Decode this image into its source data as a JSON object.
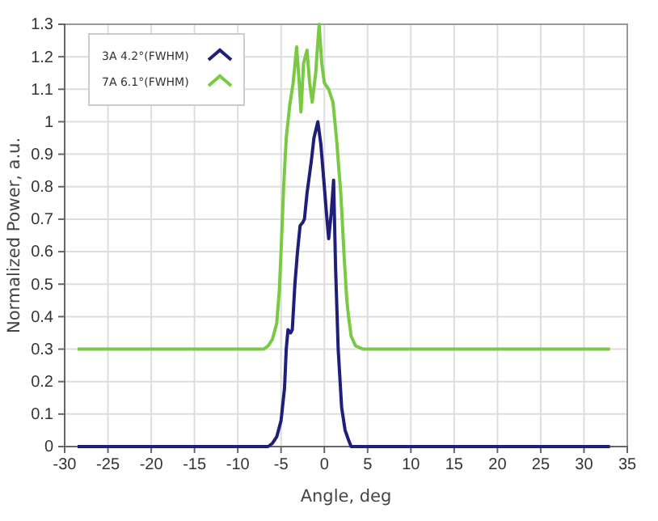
{
  "chart_data": {
    "type": "line",
    "xlabel": "Angle, deg",
    "ylabel": "Normalized Power, a.u.",
    "xlim": [
      -30,
      35
    ],
    "xticks": [
      -30,
      -25,
      -20,
      -15,
      -10,
      -5,
      0,
      5,
      10,
      15,
      20,
      25,
      30,
      35
    ],
    "ylim": [
      0,
      1.3
    ],
    "yticks": [
      0,
      0.1,
      0.2,
      0.3,
      0.4,
      0.5,
      0.6,
      0.7,
      0.8,
      0.9,
      1,
      1.1,
      1.2,
      1.3
    ],
    "grid": true,
    "legend": "top left",
    "line_style": "solid",
    "marker": "none",
    "series": [
      {
        "name": "3A 4.2°(FWHM)",
        "color": "#1f1f7a",
        "x": [
          -28.5,
          -6.5,
          -6,
          -5.5,
          -5,
          -4.6,
          -4.4,
          -4.2,
          -3.9,
          -3.7,
          -3.4,
          -3.1,
          -2.8,
          -2.5,
          -2.3,
          -2,
          -1.5,
          -1.2,
          -0.75,
          -0.4,
          0,
          0.3,
          0.5,
          0.8,
          1.07,
          1.3,
          1.6,
          2,
          2.4,
          2.8,
          3.1,
          3.5,
          33
        ],
        "values": [
          0,
          0,
          0.01,
          0.03,
          0.08,
          0.18,
          0.3,
          0.36,
          0.35,
          0.36,
          0.5,
          0.6,
          0.68,
          0.69,
          0.7,
          0.78,
          0.88,
          0.95,
          1.0,
          0.93,
          0.8,
          0.7,
          0.64,
          0.72,
          0.82,
          0.55,
          0.3,
          0.12,
          0.05,
          0.02,
          0,
          0,
          0
        ]
      },
      {
        "name": "7A 6.1°(FWHM)",
        "color": "#7ac943",
        "x": [
          -28.5,
          -7,
          -6.5,
          -6,
          -5.5,
          -5.2,
          -5,
          -4.7,
          -4.4,
          -4,
          -3.6,
          -3.2,
          -2.9,
          -2.7,
          -2.4,
          -2,
          -1.7,
          -1.4,
          -1,
          -0.6,
          -0.3,
          0,
          0.5,
          1,
          1.4,
          1.9,
          2.3,
          2.6,
          2.8,
          3.1,
          3.6,
          4.5,
          33
        ],
        "values": [
          0.3,
          0.3,
          0.31,
          0.33,
          0.38,
          0.48,
          0.6,
          0.8,
          0.95,
          1.05,
          1.12,
          1.23,
          1.12,
          1.03,
          1.18,
          1.22,
          1.12,
          1.06,
          1.15,
          1.3,
          1.18,
          1.12,
          1.1,
          1.06,
          0.95,
          0.78,
          0.58,
          0.45,
          0.4,
          0.34,
          0.31,
          0.3,
          0.3
        ]
      }
    ]
  }
}
